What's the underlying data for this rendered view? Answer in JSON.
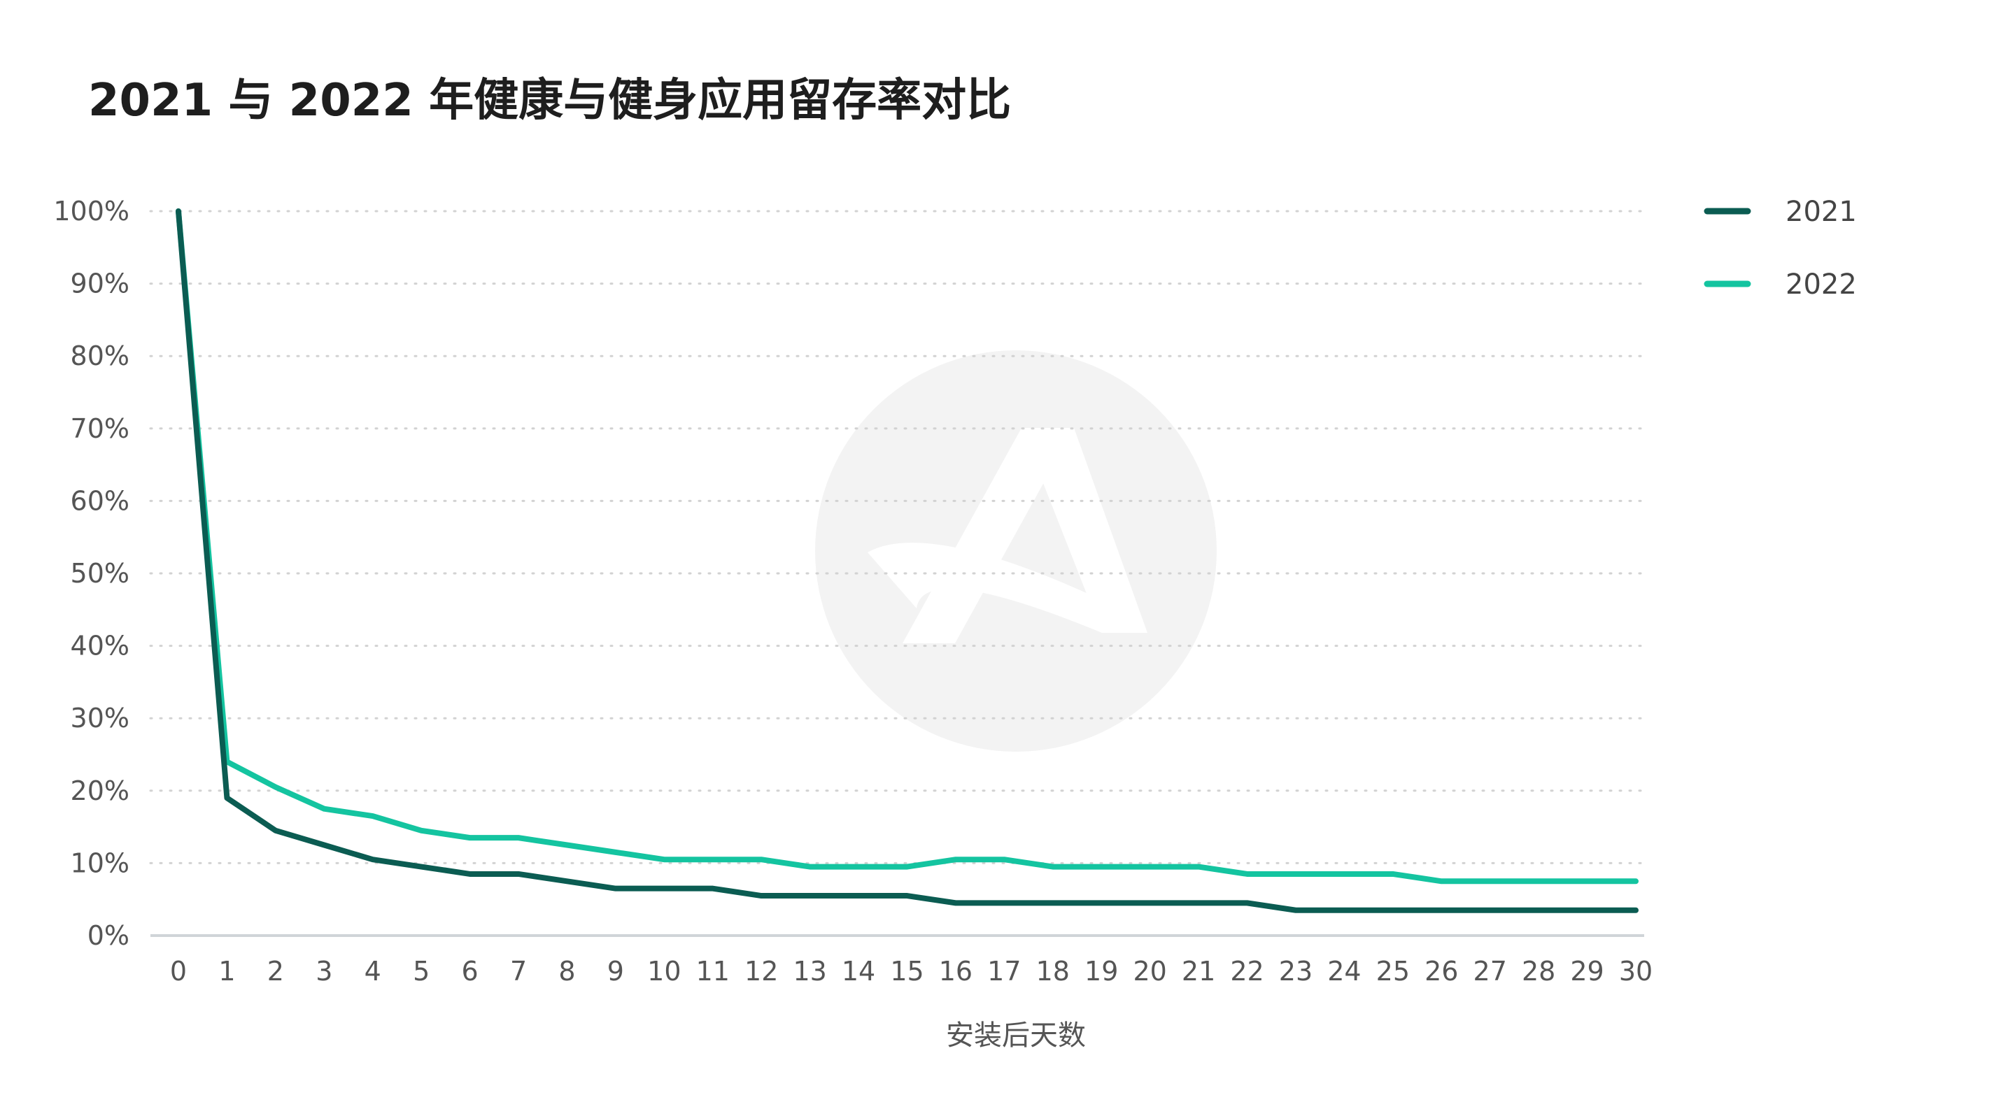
{
  "chart_data": {
    "type": "line",
    "title": "2021 与 2022 年健康与健身应用留存率对比",
    "xlabel": "安装后天数",
    "ylabel": "",
    "x": [
      0,
      1,
      2,
      3,
      4,
      5,
      6,
      7,
      8,
      9,
      10,
      11,
      12,
      13,
      14,
      15,
      16,
      17,
      18,
      19,
      20,
      21,
      22,
      23,
      24,
      25,
      26,
      27,
      28,
      29,
      30
    ],
    "y_ticks": [
      "0%",
      "10%",
      "20%",
      "30%",
      "40%",
      "50%",
      "60%",
      "70%",
      "80%",
      "90%",
      "100%"
    ],
    "ylim": [
      0,
      100
    ],
    "grid": "horizontal-dotted",
    "legend": "top-right",
    "series": [
      {
        "name": "2021",
        "color": "#0b5c52",
        "values": [
          100,
          19,
          14.5,
          12.5,
          10.5,
          9.5,
          8.5,
          8.5,
          7.5,
          6.5,
          6.5,
          6.5,
          5.5,
          5.5,
          5.5,
          5.5,
          4.5,
          4.5,
          4.5,
          4.5,
          4.5,
          4.5,
          4.5,
          3.5,
          3.5,
          3.5,
          3.5,
          3.5,
          3.5,
          3.5,
          3.5
        ]
      },
      {
        "name": "2022",
        "color": "#14c4a0",
        "values": [
          100,
          24,
          20.5,
          17.5,
          16.5,
          14.5,
          13.5,
          13.5,
          12.5,
          11.5,
          10.5,
          10.5,
          10.5,
          9.5,
          9.5,
          9.5,
          10.5,
          10.5,
          9.5,
          9.5,
          9.5,
          9.5,
          8.5,
          8.5,
          8.5,
          8.5,
          7.5,
          7.5,
          7.5,
          7.5,
          7.5
        ]
      }
    ]
  }
}
